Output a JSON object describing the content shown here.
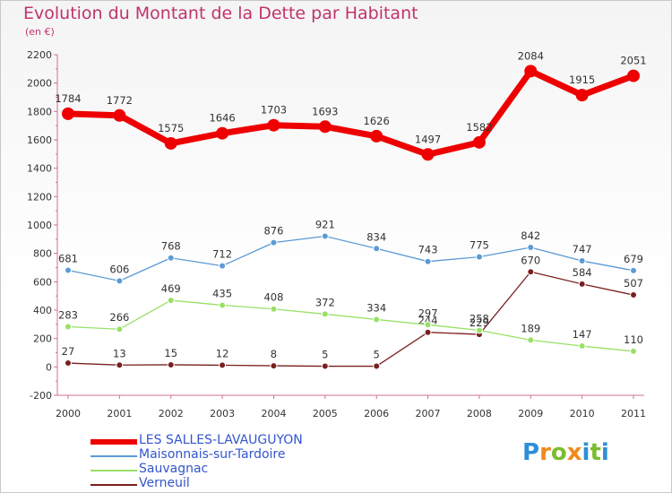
{
  "title": "Evolution du Montant de la Dette par Habitant",
  "subtitle": "(en €)",
  "chart_data": {
    "type": "line",
    "title": "Evolution du Montant de la Dette par Habitant",
    "ylabel": "(en €)",
    "xlabel": "",
    "ylim": [
      -200,
      2200
    ],
    "yticks": [
      -200,
      0,
      200,
      400,
      600,
      800,
      1000,
      1200,
      1400,
      1600,
      1800,
      2000,
      2200
    ],
    "categories": [
      "2000",
      "2001",
      "2002",
      "2003",
      "2004",
      "2005",
      "2006",
      "2007",
      "2008",
      "2009",
      "2010",
      "2011"
    ],
    "grid": false,
    "legend_position": "bottom-left",
    "series": [
      {
        "name": "LES SALLES-LAVAUGUYON",
        "color": "#ee0000",
        "values": [
          1784,
          1772,
          1575,
          1646,
          1703,
          1693,
          1626,
          1497,
          1582,
          2084,
          1915,
          2051
        ],
        "labels": [
          "1784",
          "1772",
          "1575",
          "1646",
          "1703",
          "1693",
          "1626",
          "1497",
          "1582",
          "2084",
          "1915",
          "2051"
        ]
      },
      {
        "name": "Maisonnais-sur-Tardoire",
        "color": "#5b9bd5",
        "values": [
          681,
          606,
          768,
          712,
          876,
          921,
          834,
          743,
          775,
          842,
          747,
          679
        ],
        "labels": [
          "681",
          "606",
          "768",
          "712",
          "876",
          "921",
          "834",
          "743",
          "775",
          "842",
          "747",
          "679"
        ]
      },
      {
        "name": "Sauvagnac",
        "color": "#99e066",
        "values": [
          283,
          266,
          469,
          435,
          408,
          372,
          334,
          297,
          258,
          189,
          147,
          110
        ],
        "labels": [
          "283",
          "266",
          "469",
          "435",
          "408",
          "372",
          "334",
          "297",
          "258",
          "189",
          "147",
          "110"
        ]
      },
      {
        "name": "Verneuil",
        "color": "#7a1f1f",
        "values": [
          27,
          13,
          15,
          12,
          8,
          5,
          5,
          244,
          229,
          670,
          584,
          507
        ],
        "labels": [
          "27",
          "13",
          "15",
          "12",
          "8",
          "5",
          "5",
          "244",
          "229",
          "670",
          "584",
          "507"
        ]
      }
    ]
  },
  "logo": {
    "letters": [
      "P",
      "r",
      "o",
      "x",
      "i",
      "t",
      "i"
    ],
    "colors": [
      "#2e8fd6",
      "#f08a1c",
      "#7bbd2e",
      "#f08a1c",
      "#2e8fd6",
      "#7bbd2e",
      "#2e8fd6"
    ]
  }
}
